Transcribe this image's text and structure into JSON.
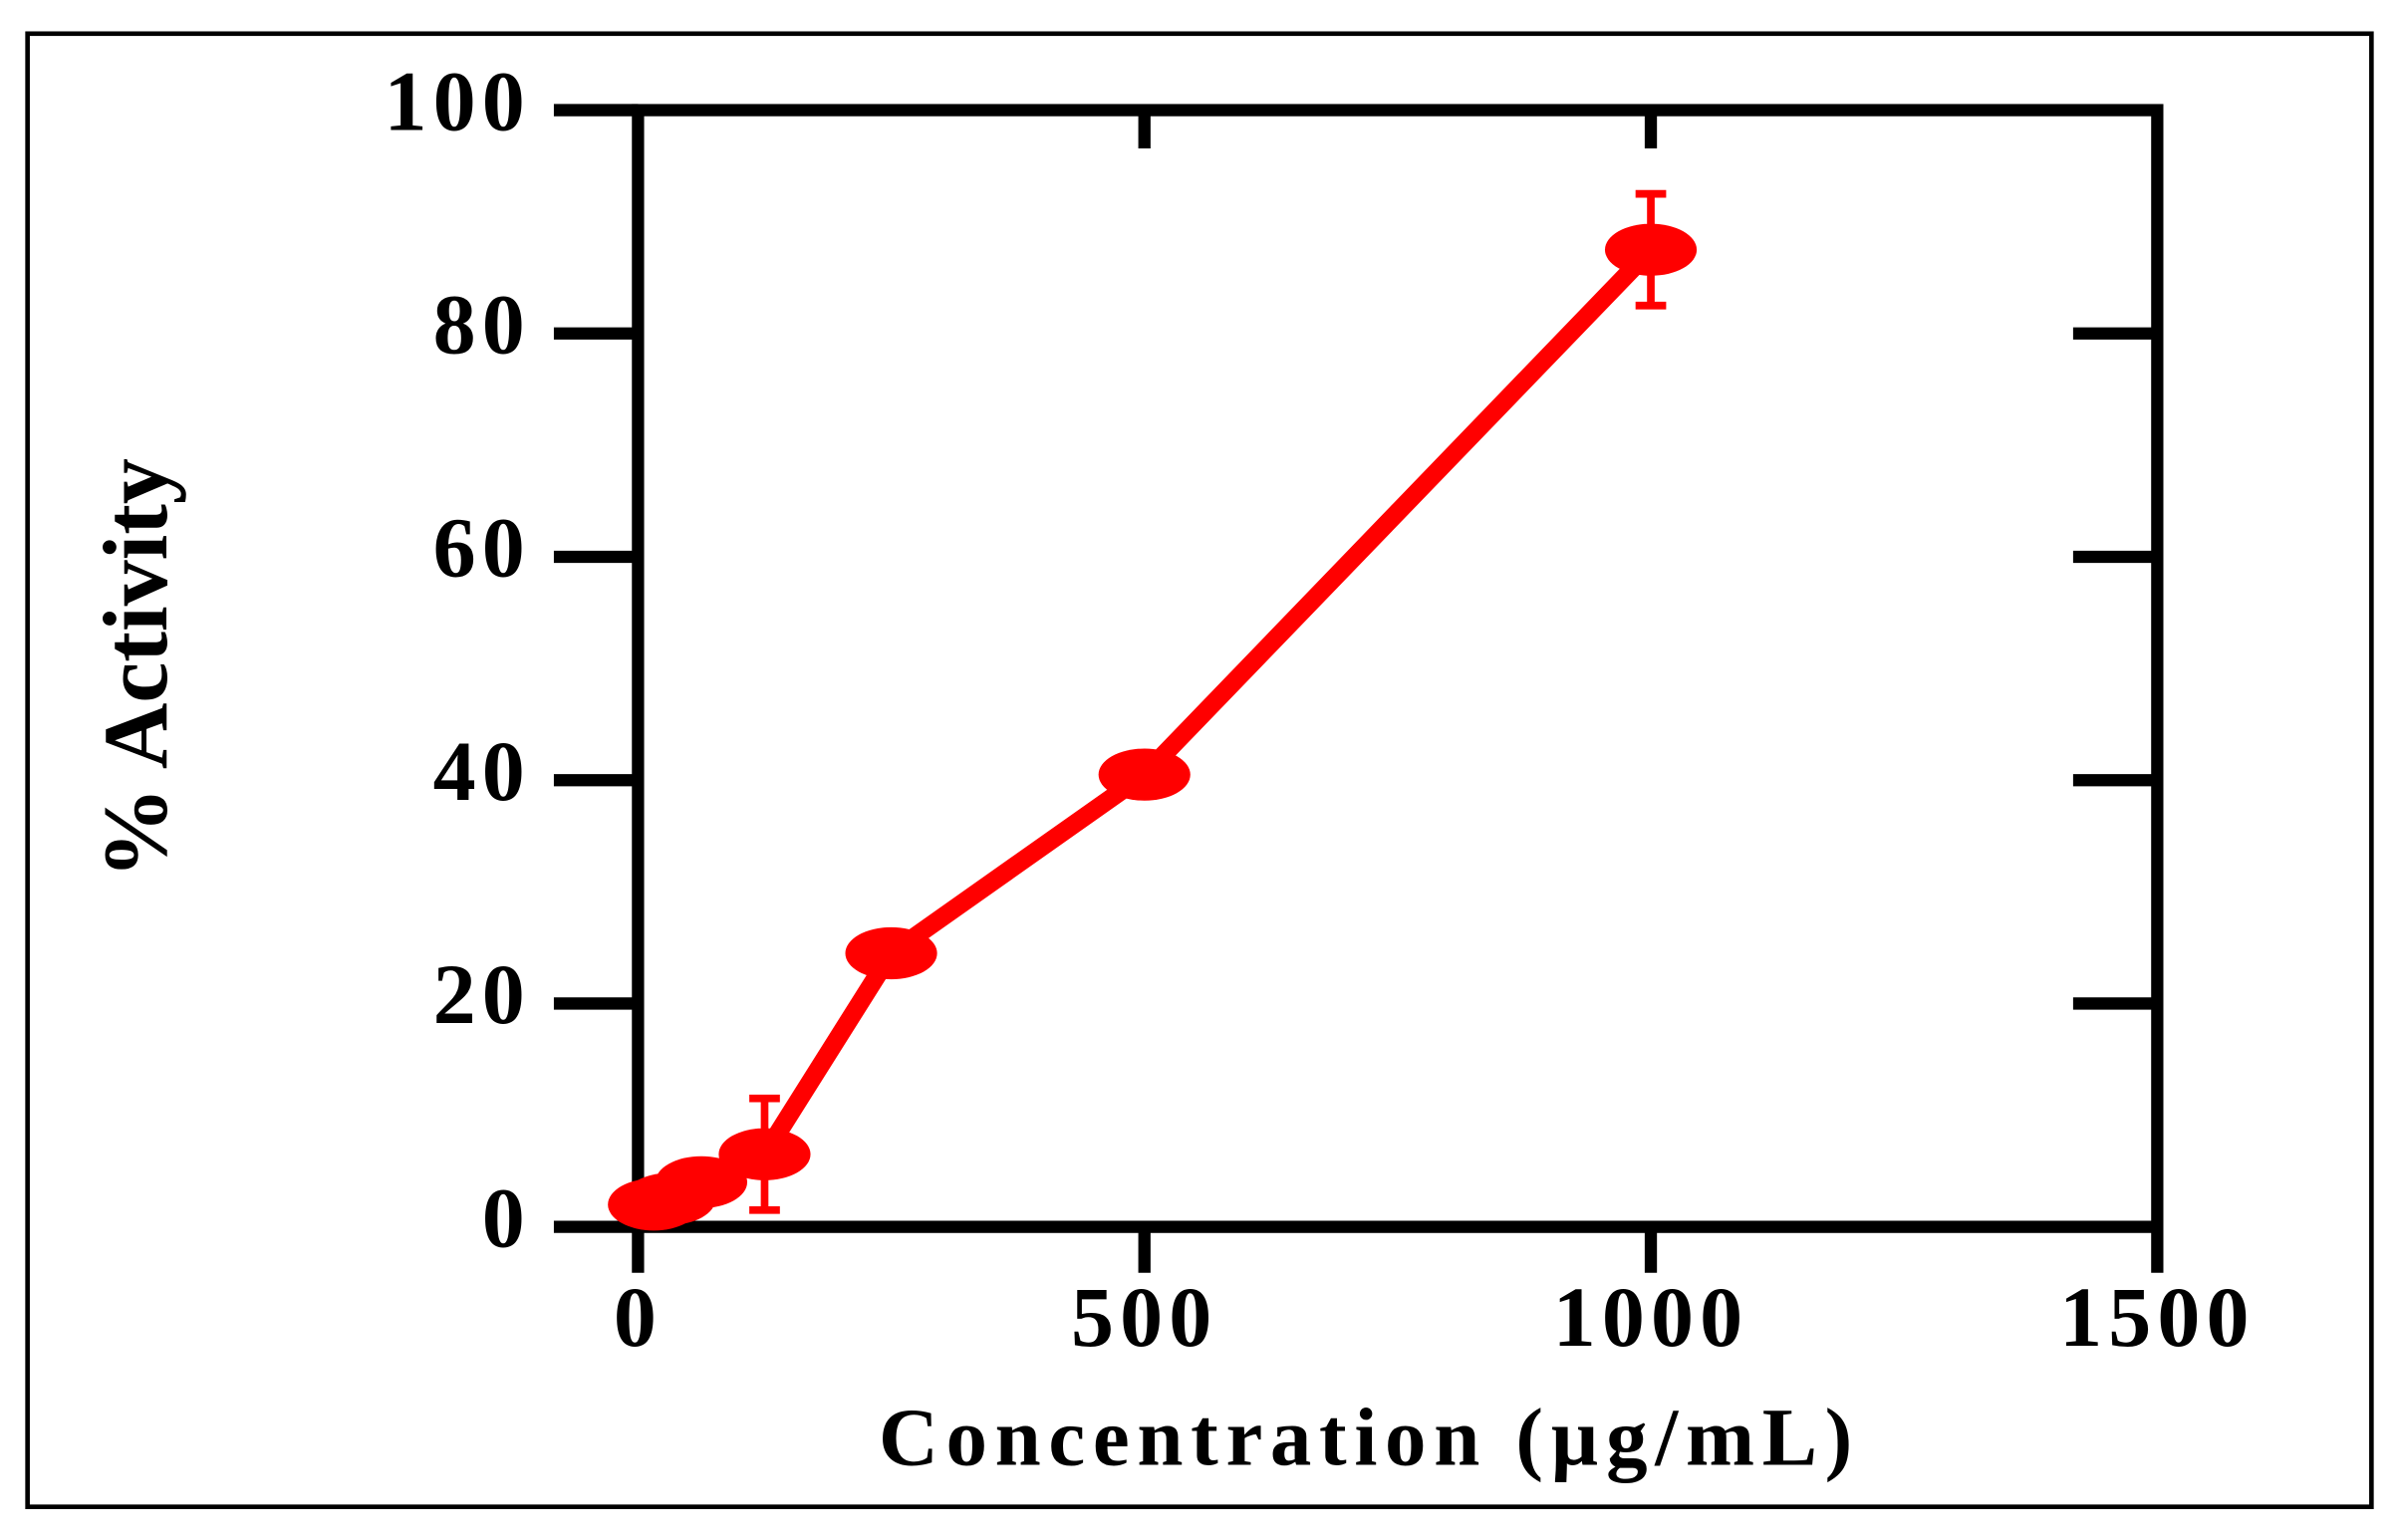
{
  "chart_data": {
    "type": "line",
    "x_label": "Concentration (µg/mL)",
    "y_label": "% Activity",
    "x": [
      15.6,
      31.25,
      62.5,
      125,
      250,
      500,
      1000
    ],
    "series": [
      {
        "color": "#ff0000",
        "values": [
          2,
          2.5,
          4,
          6.5,
          24.5,
          40.5,
          87.5
        ],
        "errors": [
          0.5,
          0.8,
          1.5,
          5,
          1,
          1.5,
          5
        ]
      }
    ],
    "xlim": [
      0,
      1500
    ],
    "ylim": [
      0,
      100
    ],
    "xticks": [
      0,
      500,
      1000,
      1500
    ],
    "yticks": [
      0,
      20,
      40,
      60,
      80,
      100
    ]
  }
}
